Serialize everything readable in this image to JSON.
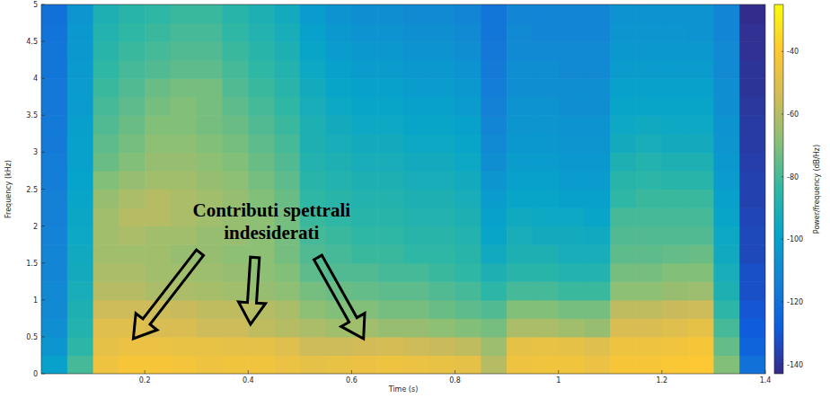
{
  "chart_data": {
    "type": "heatmap",
    "x_label": "Time (s)",
    "y_label": "Frequency (kHz)",
    "xlim": [
      0,
      1.4
    ],
    "xticks": [
      0.2,
      0.4,
      0.6,
      0.8,
      1,
      1.2,
      1.4
    ],
    "ylim": [
      0,
      5
    ],
    "yticks": [
      0,
      0.5,
      1,
      1.5,
      2,
      2.5,
      3,
      3.5,
      4,
      4.5,
      5
    ],
    "grid": false,
    "x_bins": [
      0,
      0.05,
      0.1,
      0.15,
      0.2,
      0.25,
      0.3,
      0.35,
      0.4,
      0.45,
      0.5,
      0.55,
      0.6,
      0.65,
      0.7,
      0.75,
      0.8,
      0.85,
      0.9,
      0.95,
      1,
      1.05,
      1.1,
      1.15,
      1.2,
      1.25,
      1.3,
      1.35,
      1.4
    ],
    "y_bins": [
      0,
      0.25,
      0.5,
      0.75,
      1,
      1.25,
      1.5,
      1.75,
      2,
      2.25,
      2.5,
      2.75,
      3,
      3.25,
      3.5,
      3.75,
      4,
      4.25,
      4.5,
      4.75,
      5
    ],
    "cells": [
      [
        -100,
        -80,
        -45,
        -42,
        -42,
        -43,
        -45,
        -44,
        -44,
        -46,
        -48,
        -47,
        -46,
        -45,
        -46,
        -47,
        -48,
        -60,
        -45,
        -44,
        -44,
        -46,
        -42,
        -42,
        -41,
        -40,
        -70,
        -120
      ],
      [
        -105,
        -85,
        -48,
        -46,
        -46,
        -47,
        -47,
        -48,
        -48,
        -50,
        -55,
        -55,
        -54,
        -53,
        -55,
        -56,
        -58,
        -65,
        -48,
        -47,
        -48,
        -50,
        -45,
        -45,
        -44,
        -42,
        -75,
        -125
      ],
      [
        -108,
        -88,
        -50,
        -50,
        -52,
        -52,
        -55,
        -55,
        -58,
        -60,
        -62,
        -64,
        -64,
        -66,
        -66,
        -68,
        -70,
        -72,
        -62,
        -62,
        -64,
        -66,
        -52,
        -52,
        -50,
        -48,
        -80,
        -128
      ],
      [
        -110,
        -90,
        -55,
        -55,
        -55,
        -56,
        -58,
        -58,
        -60,
        -62,
        -68,
        -70,
        -70,
        -72,
        -72,
        -74,
        -76,
        -78,
        -70,
        -70,
        -72,
        -72,
        -58,
        -58,
        -56,
        -55,
        -85,
        -130
      ],
      [
        -110,
        -92,
        -60,
        -60,
        -62,
        -62,
        -63,
        -64,
        -66,
        -68,
        -72,
        -74,
        -75,
        -76,
        -76,
        -78,
        -80,
        -85,
        -80,
        -80,
        -82,
        -82,
        -68,
        -68,
        -66,
        -65,
        -90,
        -132
      ],
      [
        -112,
        -94,
        -62,
        -62,
        -64,
        -64,
        -65,
        -66,
        -68,
        -70,
        -76,
        -78,
        -78,
        -80,
        -80,
        -82,
        -84,
        -90,
        -86,
        -86,
        -88,
        -88,
        -72,
        -72,
        -70,
        -70,
        -92,
        -132
      ],
      [
        -112,
        -95,
        -64,
        -64,
        -64,
        -66,
        -66,
        -68,
        -68,
        -72,
        -78,
        -80,
        -82,
        -82,
        -84,
        -84,
        -86,
        -95,
        -90,
        -90,
        -92,
        -92,
        -76,
        -76,
        -75,
        -74,
        -95,
        -134
      ],
      [
        -113,
        -96,
        -64,
        -62,
        -64,
        -64,
        -66,
        -66,
        -68,
        -72,
        -80,
        -82,
        -84,
        -84,
        -86,
        -86,
        -88,
        -98,
        -92,
        -94,
        -94,
        -95,
        -78,
        -78,
        -78,
        -78,
        -96,
        -134
      ],
      [
        -114,
        -97,
        -64,
        -60,
        -60,
        -62,
        -64,
        -66,
        -68,
        -72,
        -82,
        -84,
        -86,
        -86,
        -88,
        -88,
        -90,
        -100,
        -95,
        -96,
        -96,
        -98,
        -80,
        -80,
        -80,
        -80,
        -98,
        -135
      ],
      [
        -114,
        -98,
        -66,
        -62,
        -60,
        -62,
        -64,
        -66,
        -70,
        -74,
        -84,
        -86,
        -88,
        -88,
        -90,
        -90,
        -92,
        -102,
        -98,
        -98,
        -100,
        -100,
        -84,
        -82,
        -82,
        -82,
        -100,
        -136
      ],
      [
        -115,
        -99,
        -70,
        -66,
        -64,
        -64,
        -66,
        -68,
        -72,
        -76,
        -86,
        -88,
        -90,
        -90,
        -92,
        -92,
        -94,
        -105,
        -100,
        -100,
        -102,
        -102,
        -86,
        -85,
        -86,
        -86,
        -102,
        -136
      ],
      [
        -115,
        -100,
        -74,
        -70,
        -66,
        -66,
        -68,
        -70,
        -74,
        -78,
        -88,
        -90,
        -92,
        -92,
        -94,
        -94,
        -96,
        -108,
        -102,
        -102,
        -104,
        -104,
        -90,
        -88,
        -90,
        -90,
        -104,
        -137
      ],
      [
        -116,
        -100,
        -76,
        -72,
        -68,
        -68,
        -70,
        -72,
        -76,
        -80,
        -90,
        -92,
        -94,
        -94,
        -96,
        -96,
        -98,
        -110,
        -104,
        -104,
        -105,
        -105,
        -94,
        -92,
        -94,
        -94,
        -105,
        -138
      ],
      [
        -116,
        -101,
        -78,
        -74,
        -70,
        -70,
        -72,
        -74,
        -78,
        -82,
        -90,
        -94,
        -96,
        -96,
        -98,
        -98,
        -100,
        -112,
        -105,
        -105,
        -106,
        -106,
        -96,
        -95,
        -96,
        -96,
        -106,
        -138
      ],
      [
        -117,
        -102,
        -80,
        -76,
        -72,
        -70,
        -72,
        -76,
        -80,
        -84,
        -92,
        -96,
        -98,
        -98,
        -100,
        -100,
        -102,
        -114,
        -106,
        -106,
        -108,
        -108,
        -98,
        -98,
        -98,
        -98,
        -108,
        -139
      ],
      [
        -117,
        -102,
        -82,
        -78,
        -74,
        -72,
        -72,
        -78,
        -82,
        -86,
        -94,
        -98,
        -100,
        -100,
        -102,
        -102,
        -104,
        -115,
        -108,
        -108,
        -108,
        -108,
        -100,
        -100,
        -100,
        -100,
        -108,
        -140
      ],
      [
        -118,
        -103,
        -84,
        -80,
        -78,
        -76,
        -76,
        -80,
        -84,
        -88,
        -96,
        -100,
        -102,
        -102,
        -104,
        -104,
        -106,
        -116,
        -108,
        -108,
        -110,
        -110,
        -102,
        -102,
        -102,
        -102,
        -110,
        -140
      ],
      [
        -118,
        -104,
        -86,
        -82,
        -80,
        -78,
        -78,
        -82,
        -86,
        -90,
        -98,
        -102,
        -104,
        -104,
        -106,
        -106,
        -108,
        -117,
        -110,
        -110,
        -110,
        -110,
        -104,
        -104,
        -104,
        -104,
        -110,
        -141
      ],
      [
        -119,
        -104,
        -88,
        -84,
        -82,
        -80,
        -80,
        -84,
        -88,
        -92,
        -100,
        -104,
        -106,
        -106,
        -108,
        -108,
        -110,
        -118,
        -110,
        -112,
        -112,
        -112,
        -105,
        -105,
        -105,
        -106,
        -112,
        -141
      ],
      [
        -120,
        -105,
        -90,
        -86,
        -84,
        -82,
        -82,
        -86,
        -90,
        -94,
        -102,
        -106,
        -108,
        -108,
        -110,
        -110,
        -112,
        -118,
        -112,
        -112,
        -112,
        -112,
        -106,
        -106,
        -106,
        -106,
        -112,
        -142
      ]
    ],
    "colorbar": {
      "label": "Power/frequency (dB/Hz)",
      "range": [
        -143,
        -25
      ],
      "ticks": [
        -40,
        -60,
        -80,
        -100,
        -120,
        -140
      ]
    },
    "annotation": [
      "Contributi spettrali",
      "indesiderati"
    ]
  }
}
